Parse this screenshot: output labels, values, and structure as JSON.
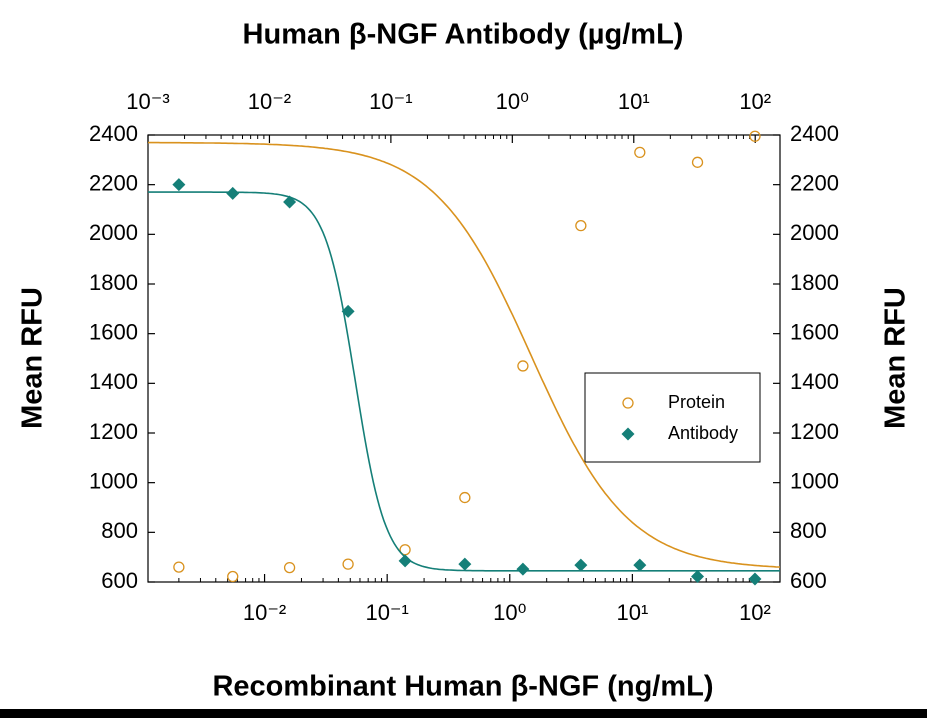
{
  "chart_data": {
    "type": "scatter",
    "x2label": "Human β-NGF Antibody (µg/mL)",
    "xlabel": "Recombinant Human β-NGF (ng/mL)",
    "ylabel": "Mean RFU",
    "y2label": "Mean RFU",
    "xscale": "log",
    "xlim": [
      0.00112,
      160
    ],
    "xticks": [
      {
        "value": 0.01,
        "label": "10⁻²"
      },
      {
        "value": 0.1,
        "label": "10⁻¹"
      },
      {
        "value": 1,
        "label": "10⁰"
      },
      {
        "value": 10,
        "label": "10¹"
      },
      {
        "value": 100,
        "label": "10²"
      }
    ],
    "x2lim": [
      0.001,
      160
    ],
    "x2ticks": [
      {
        "value": 0.001,
        "label": "10⁻³"
      },
      {
        "value": 0.01,
        "label": "10⁻²"
      },
      {
        "value": 0.1,
        "label": "10⁻¹"
      },
      {
        "value": 1,
        "label": "10⁰"
      },
      {
        "value": 10,
        "label": "10¹"
      },
      {
        "value": 100,
        "label": "10²"
      }
    ],
    "ylim": [
      600,
      2400
    ],
    "yticks": [
      600,
      800,
      1000,
      1200,
      1400,
      1600,
      1800,
      2000,
      2200,
      2400
    ],
    "y2lim": [
      600,
      2400
    ],
    "y2ticks": [
      600,
      800,
      1000,
      1200,
      1400,
      1600,
      1800,
      2000,
      2200,
      2400
    ],
    "legend": "right",
    "series": [
      {
        "name": "Protein",
        "color": "#d9921e",
        "marker": "circle",
        "x": [
          0.002,
          0.0055,
          0.016,
          0.048,
          0.14,
          0.43,
          1.28,
          3.8,
          11.5,
          34,
          100
        ],
        "values": [
          660,
          622,
          658,
          672,
          730,
          940,
          1470,
          2035,
          2330,
          2290,
          2395
        ],
        "fit": {
          "bottom": 650,
          "top": 2370,
          "ec50": 1.5,
          "hill": 1.1
        }
      },
      {
        "name": "Antibody",
        "color": "#157f78",
        "marker": "diamond",
        "x": [
          0.002,
          0.0055,
          0.016,
          0.048,
          0.14,
          0.43,
          1.28,
          3.8,
          11.5,
          34,
          100
        ],
        "values": [
          2200,
          2165,
          2130,
          1690,
          685,
          672,
          652,
          668,
          668,
          622,
          612
        ],
        "fit": {
          "bottom": 645,
          "top": 2170,
          "ec50": 0.055,
          "hill": 3.5
        }
      }
    ]
  }
}
